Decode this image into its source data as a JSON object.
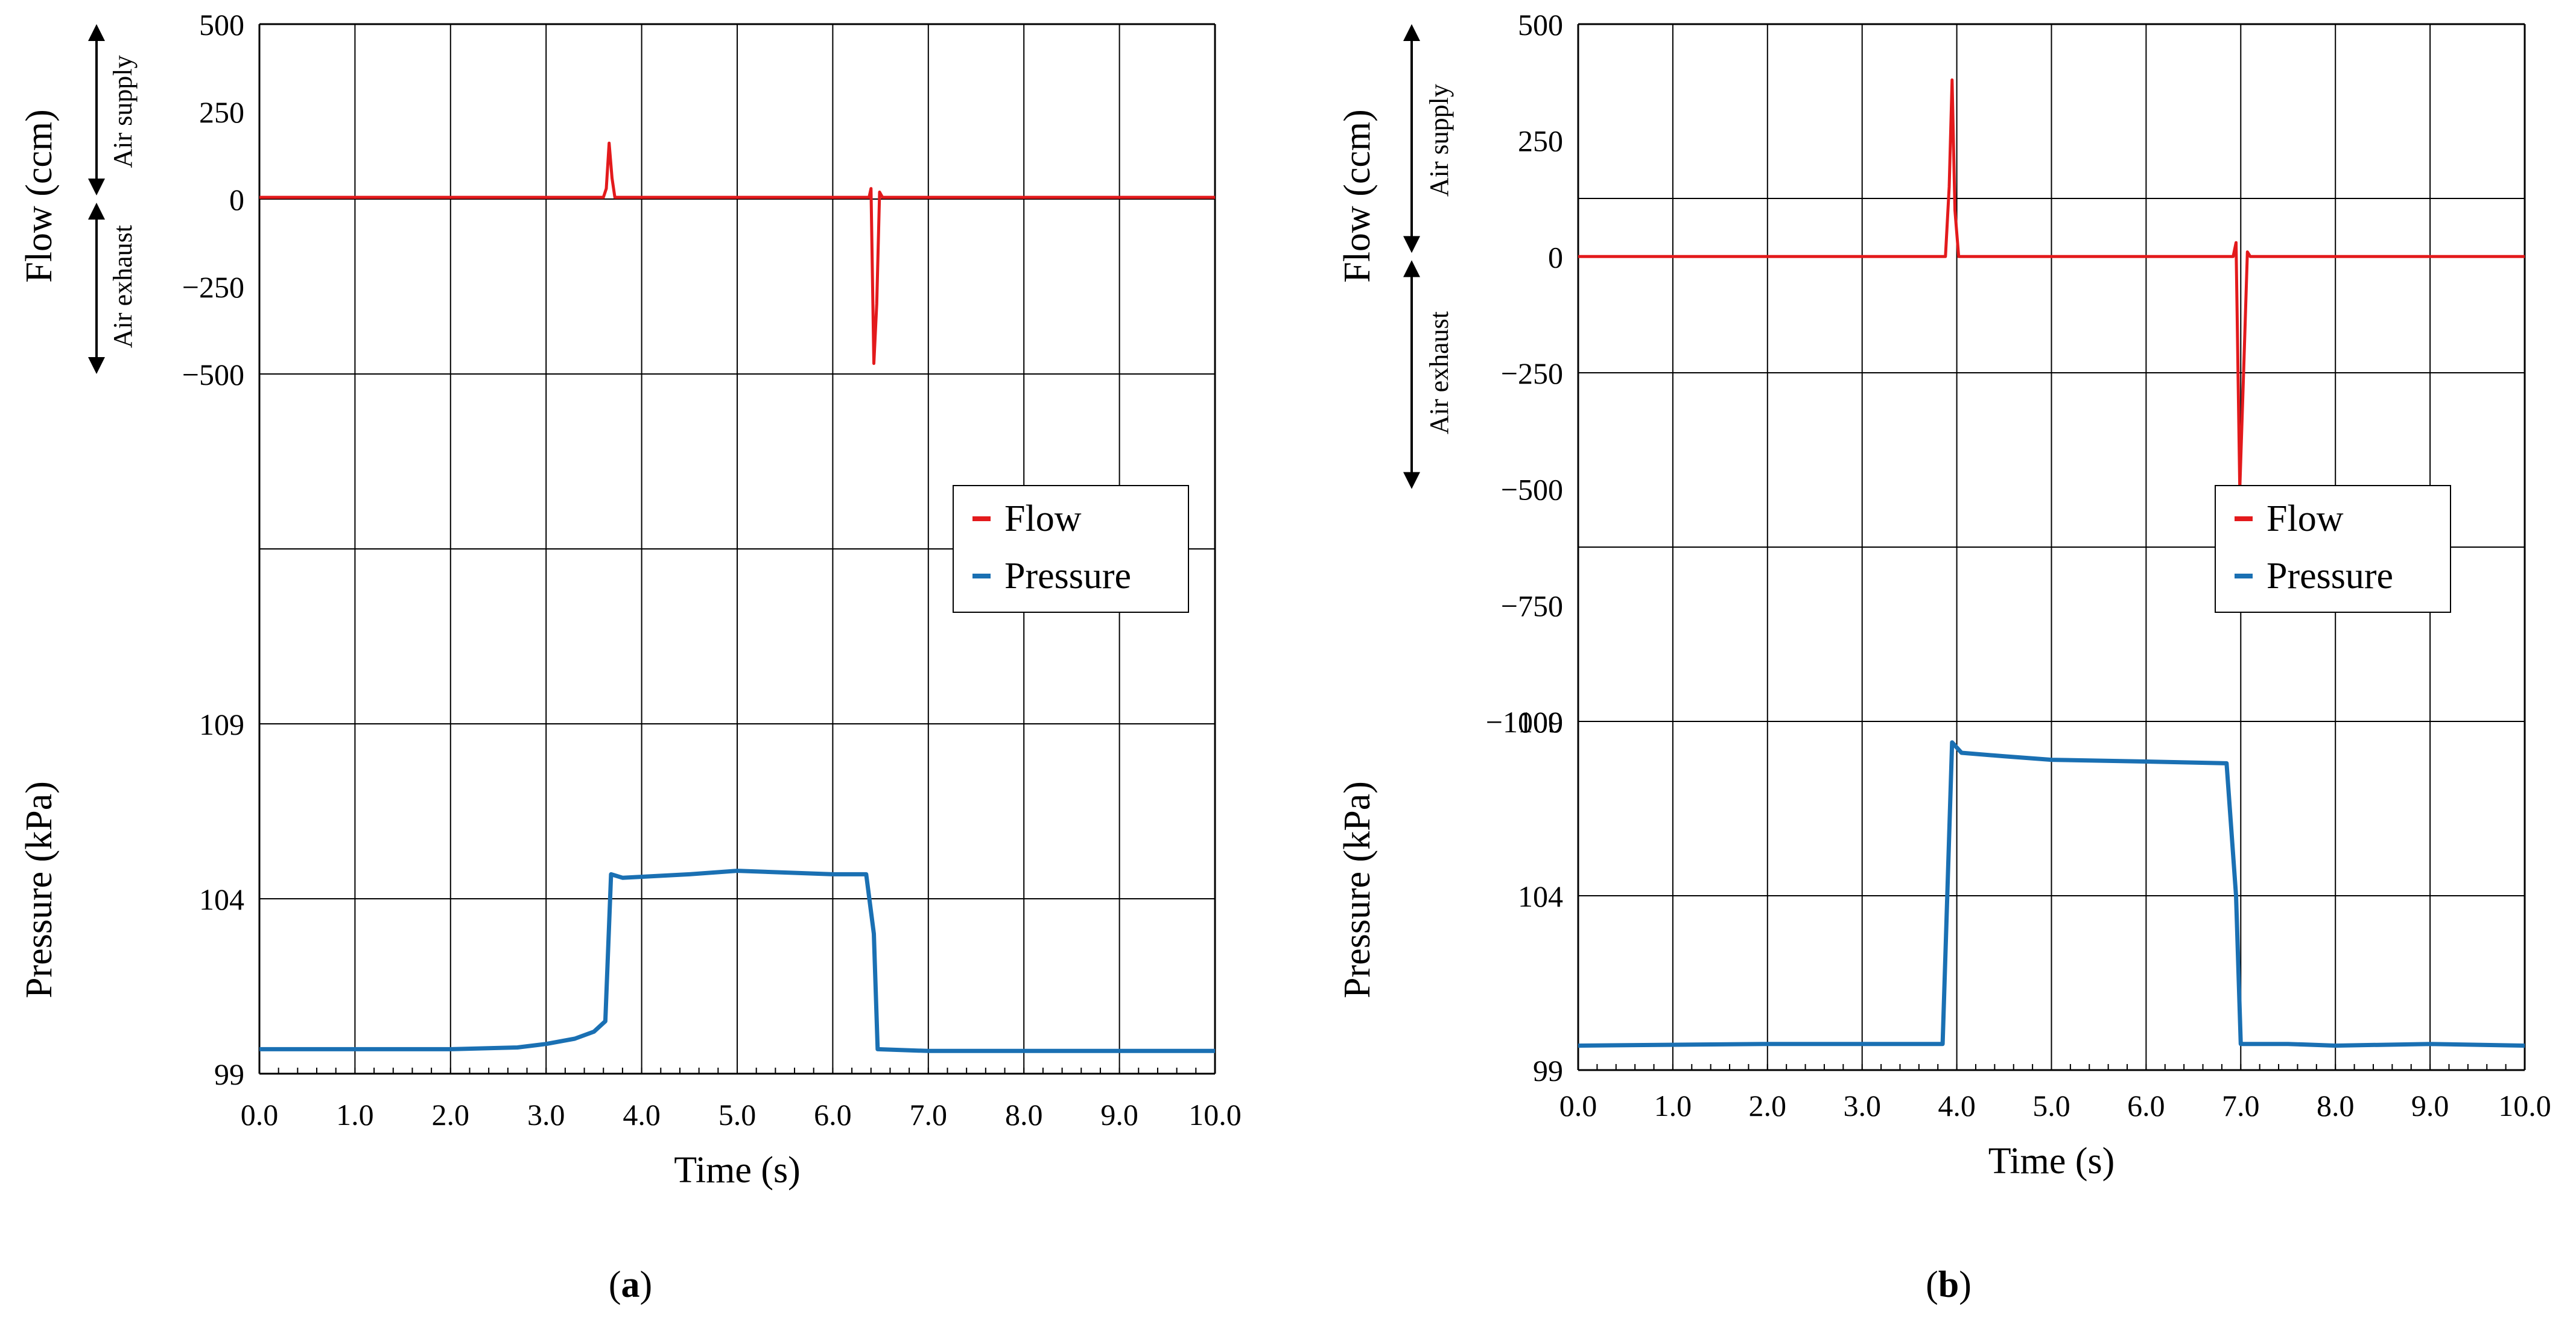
{
  "colors": {
    "flow": "#e31a1c",
    "pressure": "#1a70b3",
    "grid": "#000000"
  },
  "charts": [
    {
      "panel_label": "a",
      "xlabel": "Time (s)",
      "flow_ylabel": "Flow (ccm)",
      "pressure_ylabel": "Pressure (kPa)",
      "supply_label": "Air supply",
      "exhaust_label": "Air exhaust",
      "legend": [
        "Flow",
        "Pressure"
      ],
      "x_ticks": [
        "0.0",
        "1.0",
        "2.0",
        "3.0",
        "4.0",
        "5.0",
        "6.0",
        "7.0",
        "8.0",
        "9.0",
        "10.0"
      ],
      "flow_ticks": [
        "500",
        "250",
        "0",
        "−250",
        "−500"
      ],
      "pressure_ticks": [
        "109",
        "104",
        "99"
      ]
    },
    {
      "panel_label": "b",
      "xlabel": "Time (s)",
      "flow_ylabel": "Flow (ccm)",
      "pressure_ylabel": "Pressure (kPa)",
      "supply_label": "Air supply",
      "exhaust_label": "Air exhaust",
      "legend": [
        "Flow",
        "Pressure"
      ],
      "x_ticks": [
        "0.0",
        "1.0",
        "2.0",
        "3.0",
        "4.0",
        "5.0",
        "6.0",
        "7.0",
        "8.0",
        "9.0",
        "10.0"
      ],
      "flow_ticks": [
        "500",
        "250",
        "0",
        "−250",
        "−500",
        "−750",
        "−1000"
      ],
      "pressure_ticks": [
        "109",
        "104",
        "99"
      ]
    }
  ],
  "chart_data": [
    {
      "type": "line",
      "title": "(a)",
      "xlabel": "Time (s)",
      "xlim": [
        0,
        10
      ],
      "flow_axis": {
        "label": "Flow (ccm)",
        "range": [
          -500,
          500
        ],
        "ticks": [
          500,
          250,
          0,
          -250,
          -500
        ]
      },
      "pressure_axis": {
        "label": "Pressure (kPa)",
        "range": [
          99,
          109
        ],
        "ticks": [
          109,
          104,
          99
        ]
      },
      "legend": "right-center",
      "grid": true,
      "series": [
        {
          "name": "Flow",
          "x": [
            0.0,
            3.6,
            3.63,
            3.66,
            3.69,
            3.72,
            3.75,
            6.38,
            6.4,
            6.43,
            6.46,
            6.49,
            6.52,
            6.55,
            10.0
          ],
          "y": [
            5,
            5,
            30,
            160,
            60,
            5,
            5,
            5,
            30,
            -470,
            -300,
            20,
            5,
            5,
            5
          ]
        },
        {
          "name": "Pressure",
          "x": [
            0.0,
            2.0,
            2.7,
            3.0,
            3.3,
            3.5,
            3.62,
            3.68,
            3.8,
            4.5,
            5.0,
            5.5,
            6.0,
            6.35,
            6.43,
            6.47,
            7.0,
            8.0,
            9.0,
            10.0
          ],
          "y": [
            99.7,
            99.7,
            99.75,
            99.85,
            100.0,
            100.2,
            100.5,
            104.7,
            104.6,
            104.7,
            104.8,
            104.75,
            104.7,
            104.7,
            103.0,
            99.7,
            99.65,
            99.65,
            99.65,
            99.65
          ]
        }
      ]
    },
    {
      "type": "line",
      "title": "(b)",
      "xlabel": "Time (s)",
      "xlim": [
        0,
        10
      ],
      "flow_axis": {
        "label": "Flow (ccm)",
        "range": [
          -1000,
          500
        ],
        "ticks": [
          500,
          250,
          0,
          -250,
          -500,
          -750,
          -1000
        ]
      },
      "pressure_axis": {
        "label": "Pressure (kPa)",
        "range": [
          99,
          109
        ],
        "ticks": [
          109,
          104,
          99
        ]
      },
      "legend": "right-center",
      "grid": true,
      "series": [
        {
          "name": "Flow",
          "x": [
            0.0,
            3.88,
            3.92,
            3.95,
            3.98,
            4.02,
            6.92,
            6.95,
            6.99,
            7.03,
            7.07,
            7.1,
            10.0
          ],
          "y": [
            0,
            0,
            150,
            380,
            100,
            0,
            0,
            30,
            -500,
            -250,
            10,
            0,
            0
          ]
        },
        {
          "name": "Pressure",
          "x": [
            0.0,
            2.0,
            3.85,
            3.95,
            4.05,
            4.5,
            5.0,
            6.0,
            6.85,
            6.95,
            7.0,
            7.5,
            8.0,
            9.0,
            10.0
          ],
          "y": [
            99.7,
            99.75,
            99.75,
            108.4,
            108.1,
            108.0,
            107.9,
            107.85,
            107.8,
            104.0,
            99.75,
            99.75,
            99.7,
            99.75,
            99.7
          ]
        }
      ]
    }
  ]
}
